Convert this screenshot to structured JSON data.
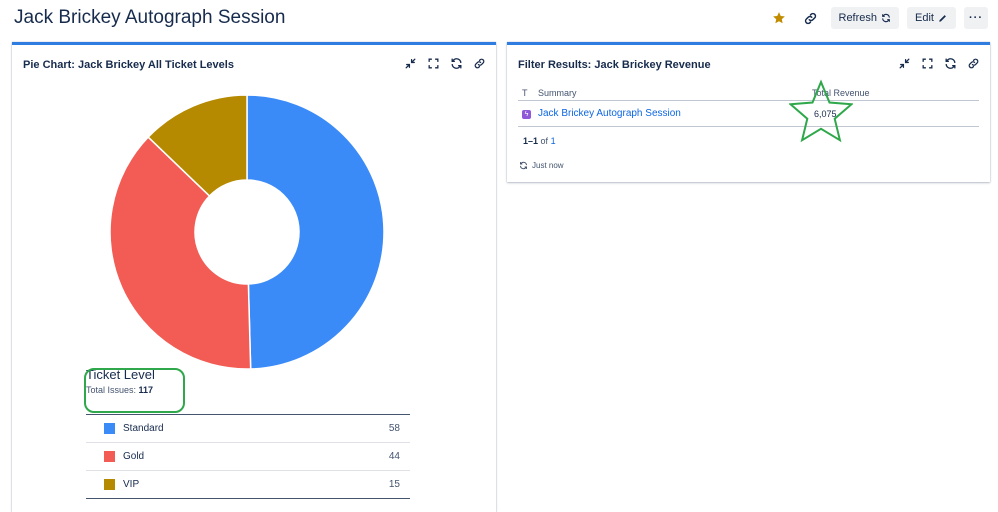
{
  "header": {
    "title": "Jack Brickey Autograph Session",
    "star_icon": "star-icon",
    "link_icon": "link-icon",
    "refresh_label": "Refresh",
    "edit_label": "Edit",
    "more_label": "···"
  },
  "pie_gadget": {
    "title": "Pie Chart: Jack Brickey All Ticket Levels",
    "legend_title": "Ticket Level",
    "total_label": "Total Issues:",
    "total_value": "117",
    "chart_data": {
      "type": "pie",
      "donut": true,
      "categories": [
        "Standard",
        "Gold",
        "VIP"
      ],
      "values": [
        58,
        44,
        15
      ],
      "colors": [
        "#3a8bf7",
        "#f25c54",
        "#b58a00"
      ]
    }
  },
  "filter_gadget": {
    "title": "Filter Results: Jack Brickey Revenue",
    "columns": {
      "type": "T",
      "summary": "Summary",
      "revenue": "Total Revenue"
    },
    "rows": [
      {
        "summary": "Jack Brickey Autograph Session",
        "revenue": "6,075"
      }
    ],
    "pager": {
      "range": "1–1",
      "of": "of",
      "total": "1"
    },
    "updated": "Just now"
  },
  "colors": {
    "accent": "#2f7de1",
    "highlight": "#2ea84a",
    "star": "#c18c00"
  }
}
